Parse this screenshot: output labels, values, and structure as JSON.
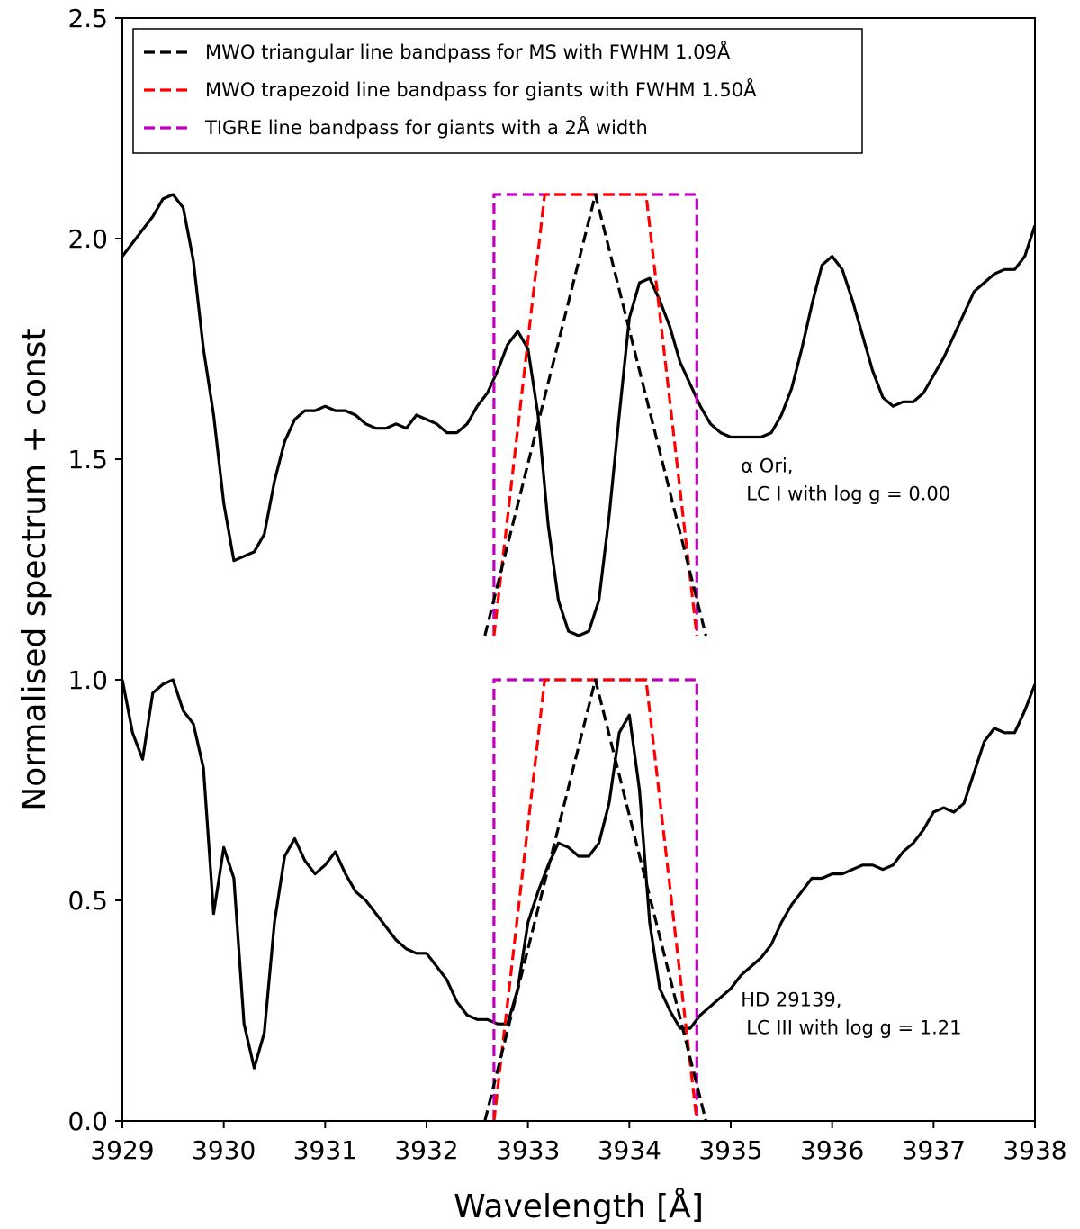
{
  "chart_data": {
    "type": "line",
    "xlabel": "Wavelength [Å]",
    "ylabel": "Normalised spectrum + const",
    "xlim": [
      3929,
      3938
    ],
    "ylim": [
      0,
      2.5
    ],
    "xticks": [
      3929,
      3930,
      3931,
      3932,
      3933,
      3934,
      3935,
      3936,
      3937,
      3938
    ],
    "xtick_labels": [
      "3929",
      "3930",
      "3931",
      "3932",
      "3933",
      "3934",
      "3935",
      "3936",
      "3937",
      "3938"
    ],
    "yticks": [
      0.0,
      0.5,
      1.0,
      1.5,
      2.0,
      2.5
    ],
    "ytick_labels": [
      "0.0",
      "0.5",
      "1.0",
      "1.5",
      "2.0",
      "2.5"
    ],
    "legend_position": "top-left",
    "series": [
      {
        "name": "MWO triangular line bandpass for MS with FWHM 1.09Å",
        "legend": true,
        "style": "dashed",
        "color": "#000000",
        "x": [
          3932.575,
          3933.665,
          3934.755
        ],
        "y": [
          1.1,
          2.1,
          1.1
        ]
      },
      {
        "name": "MWO trapezoid line bandpass for giants with FWHM 1.50Å",
        "legend": true,
        "style": "dashed",
        "color": "#ff0000",
        "x": [
          3932.665,
          3933.165,
          3934.165,
          3934.665
        ],
        "y": [
          1.1,
          2.1,
          2.1,
          1.1
        ]
      },
      {
        "name": "TIGRE line bandpass for giants with a 2Å width",
        "legend": true,
        "style": "dashed",
        "color": "#bf00bf",
        "x": [
          3932.665,
          3932.665,
          3934.665,
          3934.665
        ],
        "y": [
          1.1,
          2.1,
          2.1,
          1.1
        ]
      },
      {
        "name": "MWO triangular (HD 29139)",
        "legend": false,
        "style": "dashed",
        "color": "#000000",
        "x": [
          3932.575,
          3933.665,
          3934.755
        ],
        "y": [
          0.0,
          1.0,
          0.0
        ]
      },
      {
        "name": "MWO trapezoid (HD 29139)",
        "legend": false,
        "style": "dashed",
        "color": "#ff0000",
        "x": [
          3932.665,
          3933.165,
          3934.165,
          3934.665
        ],
        "y": [
          0.0,
          1.0,
          1.0,
          0.0
        ]
      },
      {
        "name": "TIGRE (HD 29139)",
        "legend": false,
        "style": "dashed",
        "color": "#bf00bf",
        "x": [
          3932.665,
          3932.665,
          3934.665,
          3934.665
        ],
        "y": [
          0.0,
          1.0,
          1.0,
          0.0
        ]
      },
      {
        "name": "α Ori spectrum",
        "legend": false,
        "style": "solid",
        "color": "#000000",
        "x": [
          3929.0,
          3929.1,
          3929.2,
          3929.3,
          3929.4,
          3929.5,
          3929.6,
          3929.7,
          3929.8,
          3929.9,
          3930.0,
          3930.1,
          3930.2,
          3930.3,
          3930.4,
          3930.5,
          3930.6,
          3930.7,
          3930.8,
          3930.9,
          3931.0,
          3931.1,
          3931.2,
          3931.3,
          3931.4,
          3931.5,
          3931.6,
          3931.7,
          3931.8,
          3931.9,
          3932.0,
          3932.1,
          3932.2,
          3932.3,
          3932.4,
          3932.5,
          3932.6,
          3932.7,
          3932.8,
          3932.9,
          3933.0,
          3933.1,
          3933.2,
          3933.3,
          3933.4,
          3933.5,
          3933.6,
          3933.7,
          3933.8,
          3933.9,
          3934.0,
          3934.1,
          3934.2,
          3934.3,
          3934.4,
          3934.5,
          3934.6,
          3934.7,
          3934.8,
          3934.9,
          3935.0,
          3935.1,
          3935.2,
          3935.3,
          3935.4,
          3935.5,
          3935.6,
          3935.7,
          3935.8,
          3935.9,
          3936.0,
          3936.1,
          3936.2,
          3936.3,
          3936.4,
          3936.5,
          3936.6,
          3936.7,
          3936.8,
          3936.9,
          3937.0,
          3937.1,
          3937.2,
          3937.3,
          3937.4,
          3937.5,
          3937.6,
          3937.7,
          3937.8,
          3937.9,
          3938.0
        ],
        "y": [
          1.96,
          1.99,
          2.02,
          2.05,
          2.09,
          2.1,
          2.07,
          1.95,
          1.75,
          1.6,
          1.4,
          1.27,
          1.28,
          1.29,
          1.33,
          1.45,
          1.54,
          1.59,
          1.61,
          1.61,
          1.62,
          1.61,
          1.61,
          1.6,
          1.58,
          1.57,
          1.57,
          1.58,
          1.57,
          1.6,
          1.59,
          1.58,
          1.56,
          1.56,
          1.58,
          1.62,
          1.65,
          1.7,
          1.76,
          1.79,
          1.75,
          1.6,
          1.35,
          1.18,
          1.11,
          1.1,
          1.11,
          1.18,
          1.37,
          1.6,
          1.82,
          1.9,
          1.91,
          1.86,
          1.8,
          1.72,
          1.67,
          1.62,
          1.58,
          1.56,
          1.55,
          1.55,
          1.55,
          1.55,
          1.56,
          1.6,
          1.66,
          1.75,
          1.85,
          1.94,
          1.96,
          1.93,
          1.86,
          1.78,
          1.7,
          1.64,
          1.62,
          1.63,
          1.63,
          1.65,
          1.69,
          1.73,
          1.78,
          1.83,
          1.88,
          1.9,
          1.92,
          1.93,
          1.93,
          1.96,
          2.03
        ]
      },
      {
        "name": "HD 29139 spectrum",
        "legend": false,
        "style": "solid",
        "color": "#000000",
        "x": [
          3929.0,
          3929.1,
          3929.2,
          3929.3,
          3929.4,
          3929.5,
          3929.6,
          3929.7,
          3929.8,
          3929.9,
          3930.0,
          3930.1,
          3930.2,
          3930.3,
          3930.4,
          3930.5,
          3930.6,
          3930.7,
          3930.8,
          3930.9,
          3931.0,
          3931.1,
          3931.2,
          3931.3,
          3931.4,
          3931.5,
          3931.6,
          3931.7,
          3931.8,
          3931.9,
          3932.0,
          3932.1,
          3932.2,
          3932.3,
          3932.4,
          3932.5,
          3932.6,
          3932.7,
          3932.8,
          3932.9,
          3933.0,
          3933.1,
          3933.2,
          3933.3,
          3933.4,
          3933.5,
          3933.6,
          3933.7,
          3933.8,
          3933.9,
          3934.0,
          3934.1,
          3934.2,
          3934.3,
          3934.4,
          3934.5,
          3934.6,
          3934.7,
          3934.8,
          3934.9,
          3935.0,
          3935.1,
          3935.2,
          3935.3,
          3935.4,
          3935.5,
          3935.6,
          3935.7,
          3935.8,
          3935.9,
          3936.0,
          3936.1,
          3936.2,
          3936.3,
          3936.4,
          3936.5,
          3936.6,
          3936.7,
          3936.8,
          3936.9,
          3937.0,
          3937.1,
          3937.2,
          3937.3,
          3937.4,
          3937.5,
          3937.6,
          3937.7,
          3937.8,
          3937.9,
          3938.0
        ],
        "y": [
          1.0,
          0.88,
          0.82,
          0.97,
          0.99,
          1.0,
          0.93,
          0.9,
          0.8,
          0.47,
          0.62,
          0.55,
          0.22,
          0.12,
          0.2,
          0.45,
          0.6,
          0.64,
          0.59,
          0.56,
          0.58,
          0.61,
          0.56,
          0.52,
          0.5,
          0.47,
          0.44,
          0.41,
          0.39,
          0.38,
          0.38,
          0.35,
          0.32,
          0.27,
          0.24,
          0.23,
          0.23,
          0.22,
          0.22,
          0.3,
          0.45,
          0.52,
          0.58,
          0.63,
          0.62,
          0.6,
          0.6,
          0.63,
          0.72,
          0.88,
          0.92,
          0.75,
          0.45,
          0.3,
          0.25,
          0.21,
          0.21,
          0.24,
          0.26,
          0.28,
          0.3,
          0.33,
          0.35,
          0.37,
          0.4,
          0.45,
          0.49,
          0.52,
          0.55,
          0.55,
          0.56,
          0.56,
          0.57,
          0.58,
          0.58,
          0.57,
          0.58,
          0.61,
          0.63,
          0.66,
          0.7,
          0.71,
          0.7,
          0.72,
          0.79,
          0.86,
          0.89,
          0.88,
          0.88,
          0.93,
          0.99
        ]
      }
    ],
    "annotations": [
      {
        "lines": [
          "α Ori,",
          "LC I with log g = 0.00"
        ],
        "x": 3935.1,
        "y": 1.47,
        "anchor": "start"
      },
      {
        "lines": [
          "HD 29139,",
          "LC III with log g = 1.21"
        ],
        "x": 3935.1,
        "y": 0.26,
        "anchor": "start"
      }
    ]
  }
}
